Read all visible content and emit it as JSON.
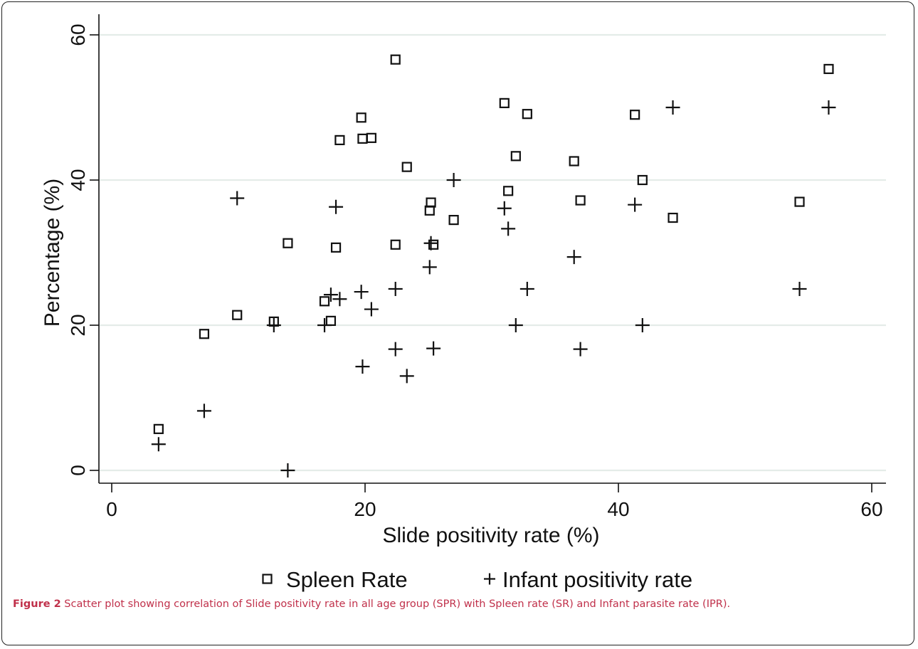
{
  "chart_data": {
    "type": "scatter",
    "xlabel": "Slide positivity rate (%)",
    "ylabel": "Percentage (%)",
    "xlim": [
      0,
      60
    ],
    "ylim": [
      0,
      60
    ],
    "x_ticks": [
      0,
      20,
      40,
      60
    ],
    "y_ticks": [
      0,
      20,
      40,
      60
    ],
    "grid": "horizontal",
    "legend_position": "bottom",
    "series": [
      {
        "name": "Spleen Rate",
        "marker": "square",
        "points": [
          [
            3.7,
            5.7
          ],
          [
            7.3,
            18.8
          ],
          [
            9.9,
            21.4
          ],
          [
            12.8,
            20.5
          ],
          [
            13.9,
            31.3
          ],
          [
            16.8,
            23.3
          ],
          [
            17.3,
            20.6
          ],
          [
            17.7,
            30.7
          ],
          [
            18.0,
            45.5
          ],
          [
            19.7,
            48.6
          ],
          [
            19.8,
            45.7
          ],
          [
            20.5,
            45.8
          ],
          [
            22.4,
            31.1
          ],
          [
            22.4,
            56.6
          ],
          [
            23.3,
            41.8
          ],
          [
            25.1,
            35.8
          ],
          [
            25.2,
            36.9
          ],
          [
            25.4,
            31.1
          ],
          [
            27.0,
            34.5
          ],
          [
            31.0,
            50.6
          ],
          [
            31.3,
            38.5
          ],
          [
            31.9,
            43.3
          ],
          [
            32.8,
            49.1
          ],
          [
            36.5,
            42.6
          ],
          [
            37.0,
            37.2
          ],
          [
            41.3,
            49.0
          ],
          [
            41.9,
            40.0
          ],
          [
            44.3,
            34.8
          ],
          [
            54.3,
            37.0
          ],
          [
            56.6,
            55.3
          ]
        ]
      },
      {
        "name": "Infant positivity rate",
        "marker": "plus",
        "points": [
          [
            3.7,
            3.6
          ],
          [
            7.3,
            8.2
          ],
          [
            9.9,
            37.5
          ],
          [
            12.8,
            20.0
          ],
          [
            13.9,
            0.0
          ],
          [
            16.8,
            20.0
          ],
          [
            17.3,
            24.2
          ],
          [
            17.7,
            36.3
          ],
          [
            18.0,
            23.6
          ],
          [
            19.7,
            24.6
          ],
          [
            19.8,
            14.3
          ],
          [
            20.5,
            22.2
          ],
          [
            22.4,
            25.0
          ],
          [
            22.4,
            16.7
          ],
          [
            23.3,
            13.0
          ],
          [
            25.1,
            28.0
          ],
          [
            25.2,
            31.3
          ],
          [
            25.4,
            16.8
          ],
          [
            27.0,
            40.0
          ],
          [
            31.0,
            36.1
          ],
          [
            31.3,
            33.3
          ],
          [
            31.9,
            20.0
          ],
          [
            32.8,
            25.0
          ],
          [
            36.5,
            29.4
          ],
          [
            37.0,
            16.7
          ],
          [
            41.3,
            36.6
          ],
          [
            41.9,
            20.0
          ],
          [
            44.3,
            50.0
          ],
          [
            54.3,
            25.0
          ],
          [
            56.6,
            50.0
          ]
        ]
      }
    ]
  },
  "caption": {
    "label": "Figure 2",
    "text": " Scatter plot showing correlation of Slide positivity rate in all age group (SPR) with Spleen rate (SR) and Infant parasite rate (IPR)."
  }
}
